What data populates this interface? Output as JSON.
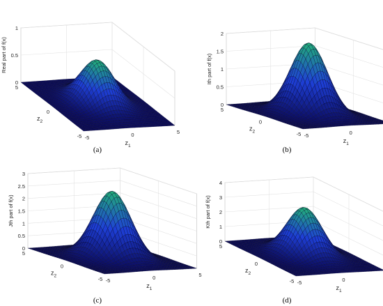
{
  "chart_data": [
    {
      "type": "surface",
      "caption": "(a)",
      "zlabel": "Real part of f(x)",
      "xlabel": "z",
      "xlabel_sub": "1",
      "ylabel": "z",
      "ylabel_sub": "2",
      "xlim": [
        -5,
        5
      ],
      "ylim": [
        -5,
        5
      ],
      "zlim": [
        0,
        1
      ],
      "xticks": [
        "-5",
        "0",
        "5"
      ],
      "yticks": [
        "-5",
        "0",
        "5"
      ],
      "zticks": [
        "0",
        "0.5",
        "1"
      ],
      "peak": 0.8,
      "colormap": [
        "#0a0a5c",
        "#1e3fd6",
        "#22b07a"
      ]
    },
    {
      "type": "surface",
      "caption": "(b)",
      "zlabel": "Ith part of f(x)",
      "xlabel": "z",
      "xlabel_sub": "1",
      "ylabel": "z",
      "ylabel_sub": "2",
      "xlim": [
        -5,
        5
      ],
      "ylim": [
        -5,
        5
      ],
      "zlim": [
        0,
        2
      ],
      "xticks": [
        "-5",
        "0",
        "5"
      ],
      "yticks": [
        "-5",
        "0",
        "5"
      ],
      "zticks": [
        "0",
        "0.5",
        "1",
        "1.5",
        "2"
      ],
      "peak": 2.0,
      "colormap": [
        "#0a0a5c",
        "#1e3fd6",
        "#22b07a"
      ]
    },
    {
      "type": "surface",
      "caption": "(c)",
      "zlabel": "Jth part of f(x)",
      "xlabel": "z",
      "xlabel_sub": "1",
      "ylabel": "z",
      "ylabel_sub": "2",
      "xlim": [
        -5,
        5
      ],
      "ylim": [
        -5,
        5
      ],
      "zlim": [
        0,
        3
      ],
      "xticks": [
        "-5",
        "0",
        "5"
      ],
      "yticks": [
        "-5",
        "0",
        "5"
      ],
      "zticks": [
        "0",
        "0.5",
        "1",
        "1.5",
        "2",
        "2.5",
        "3"
      ],
      "peak": 2.7,
      "colormap": [
        "#0a0a5c",
        "#1e3fd6",
        "#22b07a"
      ]
    },
    {
      "type": "surface",
      "caption": "(d)",
      "zlabel": "Kth part of f(x)",
      "xlabel": "z",
      "xlabel_sub": "1",
      "ylabel": "z",
      "ylabel_sub": "2",
      "xlim": [
        -5,
        5
      ],
      "ylim": [
        -5,
        5
      ],
      "zlim": [
        0,
        4
      ],
      "xticks": [
        "-5",
        "0",
        "5"
      ],
      "yticks": [
        "-5",
        "0",
        "5"
      ],
      "zticks": [
        "0",
        "1",
        "2",
        "3",
        "4"
      ],
      "peak": 3.3,
      "colormap": [
        "#0a0a5c",
        "#1e3fd6",
        "#22b07a"
      ]
    }
  ]
}
